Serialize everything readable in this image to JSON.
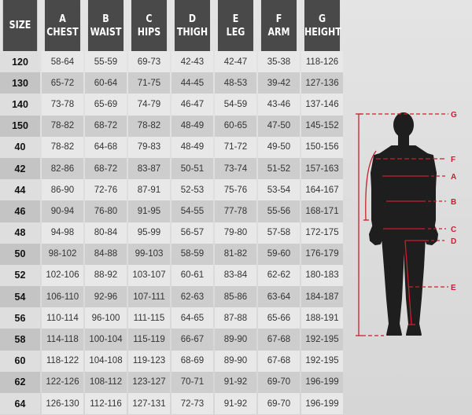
{
  "headers": [
    {
      "letter": "",
      "name": "SIZE"
    },
    {
      "letter": "A",
      "name": "CHEST"
    },
    {
      "letter": "B",
      "name": "WAIST"
    },
    {
      "letter": "C",
      "name": "HIPS"
    },
    {
      "letter": "D",
      "name": "THIGH"
    },
    {
      "letter": "E",
      "name": "LEG"
    },
    {
      "letter": "F",
      "name": "ARM"
    },
    {
      "letter": "G",
      "name": "HEIGHT"
    }
  ],
  "rows": [
    [
      "120",
      "58-64",
      "55-59",
      "69-73",
      "42-43",
      "42-47",
      "35-38",
      "118-126"
    ],
    [
      "130",
      "65-72",
      "60-64",
      "71-75",
      "44-45",
      "48-53",
      "39-42",
      "127-136"
    ],
    [
      "140",
      "73-78",
      "65-69",
      "74-79",
      "46-47",
      "54-59",
      "43-46",
      "137-146"
    ],
    [
      "150",
      "78-82",
      "68-72",
      "78-82",
      "48-49",
      "60-65",
      "47-50",
      "145-152"
    ],
    [
      "40",
      "78-82",
      "64-68",
      "79-83",
      "48-49",
      "71-72",
      "49-50",
      "150-156"
    ],
    [
      "42",
      "82-86",
      "68-72",
      "83-87",
      "50-51",
      "73-74",
      "51-52",
      "157-163"
    ],
    [
      "44",
      "86-90",
      "72-76",
      "87-91",
      "52-53",
      "75-76",
      "53-54",
      "164-167"
    ],
    [
      "46",
      "90-94",
      "76-80",
      "91-95",
      "54-55",
      "77-78",
      "55-56",
      "168-171"
    ],
    [
      "48",
      "94-98",
      "80-84",
      "95-99",
      "56-57",
      "79-80",
      "57-58",
      "172-175"
    ],
    [
      "50",
      "98-102",
      "84-88",
      "99-103",
      "58-59",
      "81-82",
      "59-60",
      "176-179"
    ],
    [
      "52",
      "102-106",
      "88-92",
      "103-107",
      "60-61",
      "83-84",
      "62-62",
      "180-183"
    ],
    [
      "54",
      "106-110",
      "92-96",
      "107-111",
      "62-63",
      "85-86",
      "63-64",
      "184-187"
    ],
    [
      "56",
      "110-114",
      "96-100",
      "111-115",
      "64-65",
      "87-88",
      "65-66",
      "188-191"
    ],
    [
      "58",
      "114-118",
      "100-104",
      "115-119",
      "66-67",
      "89-90",
      "67-68",
      "192-195"
    ],
    [
      "60",
      "118-122",
      "104-108",
      "119-123",
      "68-69",
      "89-90",
      "67-68",
      "192-195"
    ],
    [
      "62",
      "122-126",
      "108-112",
      "123-127",
      "70-71",
      "91-92",
      "69-70",
      "196-199"
    ],
    [
      "64",
      "126-130",
      "112-116",
      "127-131",
      "72-73",
      "91-92",
      "69-70",
      "196-199"
    ]
  ],
  "figure": {
    "labels": {
      "G": "G",
      "F": "F",
      "A": "A",
      "B": "B",
      "C": "C",
      "D": "D",
      "E": "E"
    },
    "colors": {
      "silhouette": "#1e1e1e",
      "measure": "#c8202f",
      "header": "#494949"
    }
  }
}
